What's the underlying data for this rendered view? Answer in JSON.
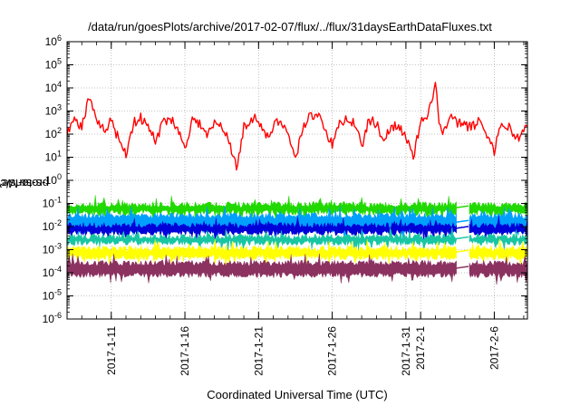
{
  "window": {
    "title": "/data/run/goesPlots/archive/2017-02-07/flux/../flux/31daysEarthDataFluxes.txt"
  },
  "colors": {
    "red": "#ff0000",
    "green": "#21d900",
    "cyan": "#00a0ff",
    "blue": "#0000d8",
    "teal": "#17c6a3",
    "yellow": "#ffff00",
    "purple": "#8b3260"
  },
  "chart_data": {
    "type": "line",
    "title": "/data/run/goesPlots/archive/2017-02-07/flux/../flux/31daysEarthDataFluxes.txt",
    "xlabel": "Coordinated Universal Time (UTC)",
    "ylabel_main": "protons/cm",
    "ylabel_sup": "2",
    "ylabel_rest": "-s-sr-MeV",
    "y_scale": "log",
    "ylim": [
      1e-06,
      1000000.0
    ],
    "xlim": [
      "2017-01-08",
      "2017-02-08 06:00"
    ],
    "grid": true,
    "y_ticks": [
      {
        "value": 1e-06,
        "base": "10",
        "exp": "-6"
      },
      {
        "value": 1e-05,
        "base": "10",
        "exp": "-5"
      },
      {
        "value": 0.0001,
        "base": "10",
        "exp": "-4"
      },
      {
        "value": 0.001,
        "base": "10",
        "exp": "-3"
      },
      {
        "value": 0.01,
        "base": "10",
        "exp": "-2"
      },
      {
        "value": 0.1,
        "base": "10",
        "exp": "-1"
      },
      {
        "value": 1,
        "base": "10",
        "exp": "0"
      },
      {
        "value": 10,
        "base": "10",
        "exp": "1"
      },
      {
        "value": 100,
        "base": "10",
        "exp": "2"
      },
      {
        "value": 1000,
        "base": "10",
        "exp": "3"
      },
      {
        "value": 10000,
        "base": "10",
        "exp": "4"
      },
      {
        "value": 100000,
        "base": "10",
        "exp": "5"
      },
      {
        "value": 1000000,
        "base": "10",
        "exp": "6"
      }
    ],
    "x_ticks": [
      {
        "date": "2017-01-11",
        "lines": [
          "2017-1-11"
        ]
      },
      {
        "date": "2017-01-16",
        "lines": [
          "2017-1-16"
        ]
      },
      {
        "date": "2017-01-21",
        "lines": [
          "2017-1-21"
        ]
      },
      {
        "date": "2017-01-26",
        "lines": [
          "2017-1-26"
        ]
      },
      {
        "date": "2017-01-31",
        "lines": [
          "2017-1-31"
        ]
      },
      {
        "date": "2017-02-01",
        "lines": [
          "2017-2-1"
        ]
      },
      {
        "date": "2017-02-06",
        "lines": [
          "2017-2-6"
        ]
      }
    ],
    "data_gap": [
      "2017-02-03 12:00",
      "2017-02-04 06:00"
    ],
    "series": [
      {
        "color": "#ff0000",
        "band": false,
        "points": [
          [
            "2017-01-08 00:00",
            150
          ],
          [
            "2017-01-08 12:00",
            400
          ],
          [
            "2017-01-09 00:00",
            200
          ],
          [
            "2017-01-09 12:00",
            4000
          ],
          [
            "2017-01-10 00:00",
            300
          ],
          [
            "2017-01-10 12:00",
            150
          ],
          [
            "2017-01-11 00:00",
            400
          ],
          [
            "2017-01-11 12:00",
            60
          ],
          [
            "2017-01-12 00:00",
            15
          ],
          [
            "2017-01-12 12:00",
            300
          ],
          [
            "2017-01-13 00:00",
            500
          ],
          [
            "2017-01-13 12:00",
            200
          ],
          [
            "2017-01-14 00:00",
            50
          ],
          [
            "2017-01-14 12:00",
            300
          ],
          [
            "2017-01-15 00:00",
            600
          ],
          [
            "2017-01-15 12:00",
            150
          ],
          [
            "2017-01-16 00:00",
            30
          ],
          [
            "2017-01-16 12:00",
            400
          ],
          [
            "2017-01-17 00:00",
            300
          ],
          [
            "2017-01-17 12:00",
            80
          ],
          [
            "2017-01-18 00:00",
            300
          ],
          [
            "2017-01-18 12:00",
            200
          ],
          [
            "2017-01-19 00:00",
            60
          ],
          [
            "2017-01-19 12:00",
            3
          ],
          [
            "2017-01-20 00:00",
            200
          ],
          [
            "2017-01-20 12:00",
            500
          ],
          [
            "2017-01-21 00:00",
            400
          ],
          [
            "2017-01-21 12:00",
            60
          ],
          [
            "2017-01-22 00:00",
            200
          ],
          [
            "2017-01-22 12:00",
            500
          ],
          [
            "2017-01-23 00:00",
            100
          ],
          [
            "2017-01-23 12:00",
            8
          ],
          [
            "2017-01-24 00:00",
            200
          ],
          [
            "2017-01-24 12:00",
            600
          ],
          [
            "2017-01-25 00:00",
            800
          ],
          [
            "2017-01-25 12:00",
            200
          ],
          [
            "2017-01-26 00:00",
            30
          ],
          [
            "2017-01-26 12:00",
            300
          ],
          [
            "2017-01-27 00:00",
            500
          ],
          [
            "2017-01-27 12:00",
            300
          ],
          [
            "2017-01-28 00:00",
            30
          ],
          [
            "2017-01-28 12:00",
            400
          ],
          [
            "2017-01-29 00:00",
            300
          ],
          [
            "2017-01-29 12:00",
            50
          ],
          [
            "2017-01-30 00:00",
            200
          ],
          [
            "2017-01-30 12:00",
            300
          ],
          [
            "2017-01-31 00:00",
            60
          ],
          [
            "2017-01-31 12:00",
            10
          ],
          [
            "2017-02-01 00:00",
            300
          ],
          [
            "2017-02-01 12:00",
            500
          ],
          [
            "2017-02-02 00:00",
            20000
          ],
          [
            "2017-02-02 06:00",
            300
          ],
          [
            "2017-02-02 12:00",
            100
          ],
          [
            "2017-02-03 00:00",
            500
          ],
          [
            "2017-02-03 12:00",
            300
          ],
          [
            "2017-02-04 12:00",
            200
          ],
          [
            "2017-02-05 00:00",
            400
          ],
          [
            "2017-02-05 12:00",
            100
          ],
          [
            "2017-02-06 00:00",
            20
          ],
          [
            "2017-02-06 12:00",
            300
          ],
          [
            "2017-02-07 00:00",
            200
          ],
          [
            "2017-02-07 12:00",
            60
          ],
          [
            "2017-02-08 00:00",
            150
          ],
          [
            "2017-02-08 06:00",
            200
          ]
        ]
      },
      {
        "color": "#21d900",
        "band": true,
        "low": 0.03,
        "high": 0.12,
        "spike": 0.2
      },
      {
        "color": "#00a0ff",
        "band": true,
        "low": 0.005,
        "high": 0.04
      },
      {
        "color": "#0000d8",
        "band": true,
        "low": 0.004,
        "high": 0.015
      },
      {
        "color": "#17c6a3",
        "band": true,
        "low": 0.0015,
        "high": 0.005
      },
      {
        "color": "#ffff00",
        "band": true,
        "low": 0.00035,
        "high": 0.0015
      },
      {
        "color": "#8b3260",
        "band": true,
        "low": 6e-05,
        "high": 0.00035
      }
    ]
  }
}
